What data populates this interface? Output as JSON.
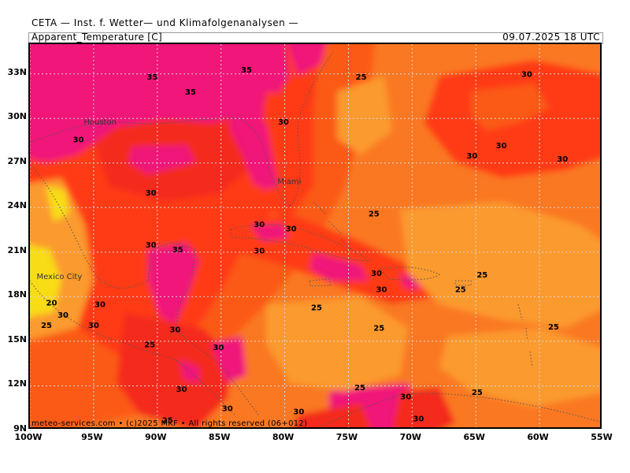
{
  "header": {
    "source": "CETA — Inst. f. Wetter— und Klimafolgenanalysen —",
    "parameter": "Apparent_Temperature [C]",
    "valid_time": "09.07.2025 18 UTC"
  },
  "footer": "meteo-services.com • (c)2025 MKF • All rights reserved (06+012)",
  "axes": {
    "lat_labels": [
      "33N",
      "30N",
      "27N",
      "24N",
      "21N",
      "18N",
      "15N",
      "12N",
      "9N"
    ],
    "lon_labels": [
      "100W",
      "95W",
      "90W",
      "85W",
      "80W",
      "75W",
      "70W",
      "65W",
      "60W",
      "55W"
    ],
    "lat_values": [
      33,
      30,
      27,
      24,
      21,
      18,
      15,
      12,
      9
    ],
    "lon_values": [
      -100,
      -95,
      -90,
      -85,
      -80,
      -75,
      -70,
      -65,
      -60,
      -55
    ]
  },
  "colors": {
    "magenta": "#f0147a",
    "hot_red": "#f42a1c",
    "red": "#ff3a12",
    "orange_red": "#fb5a12",
    "orange": "#fa7820",
    "light_orange": "#fb9a2e",
    "yellow": "#f8dc18",
    "grid": "#d9d9d9",
    "coast": "#555555"
  },
  "cities": [
    {
      "name": "Houston",
      "lon": -95.4,
      "lat": 29.8
    },
    {
      "name": "Miami",
      "lon": -80.2,
      "lat": 25.8
    },
    {
      "name": "Mexico City",
      "lon": -99.1,
      "lat": 19.4
    }
  ],
  "contour_labels": [
    {
      "text": "35",
      "lon": -90.4,
      "lat": 32.6
    },
    {
      "text": "35",
      "lon": -83.0,
      "lat": 33.1
    },
    {
      "text": "35",
      "lon": -87.4,
      "lat": 31.6
    },
    {
      "text": "30",
      "lon": -80.1,
      "lat": 29.6
    },
    {
      "text": "30",
      "lon": -96.2,
      "lat": 28.4
    },
    {
      "text": "30",
      "lon": -90.5,
      "lat": 24.8
    },
    {
      "text": "30",
      "lon": -82.0,
      "lat": 22.7
    },
    {
      "text": "30",
      "lon": -79.5,
      "lat": 22.4
    },
    {
      "text": "30",
      "lon": -90.5,
      "lat": 21.3
    },
    {
      "text": "35",
      "lon": -88.4,
      "lat": 21.0
    },
    {
      "text": "30",
      "lon": -82.0,
      "lat": 20.9
    },
    {
      "text": "25",
      "lon": -74.0,
      "lat": 32.6
    },
    {
      "text": "25",
      "lon": -73.0,
      "lat": 23.4
    },
    {
      "text": "30",
      "lon": -61.0,
      "lat": 32.8
    },
    {
      "text": "30",
      "lon": -63.0,
      "lat": 28.0
    },
    {
      "text": "30",
      "lon": -65.3,
      "lat": 27.3
    },
    {
      "text": "30",
      "lon": -58.2,
      "lat": 27.1
    },
    {
      "text": "30",
      "lon": -72.8,
      "lat": 19.4
    },
    {
      "text": "30",
      "lon": -72.4,
      "lat": 18.3
    },
    {
      "text": "25",
      "lon": -66.2,
      "lat": 18.3
    },
    {
      "text": "25",
      "lon": -64.5,
      "lat": 19.3
    },
    {
      "text": "25",
      "lon": -77.5,
      "lat": 17.1
    },
    {
      "text": "25",
      "lon": -72.6,
      "lat": 15.7
    },
    {
      "text": "25",
      "lon": -58.9,
      "lat": 15.8
    },
    {
      "text": "20",
      "lon": -98.3,
      "lat": 17.4
    },
    {
      "text": "30",
      "lon": -97.4,
      "lat": 16.6
    },
    {
      "text": "30",
      "lon": -94.5,
      "lat": 17.3
    },
    {
      "text": "25",
      "lon": -98.7,
      "lat": 15.9
    },
    {
      "text": "30",
      "lon": -95.0,
      "lat": 15.9
    },
    {
      "text": "30",
      "lon": -88.6,
      "lat": 15.6
    },
    {
      "text": "25",
      "lon": -90.6,
      "lat": 14.6
    },
    {
      "text": "30",
      "lon": -85.2,
      "lat": 14.4
    },
    {
      "text": "30",
      "lon": -88.1,
      "lat": 11.6
    },
    {
      "text": "30",
      "lon": -84.5,
      "lat": 10.3
    },
    {
      "text": "25",
      "lon": -89.2,
      "lat": 9.5
    },
    {
      "text": "30",
      "lon": -78.9,
      "lat": 10.1
    },
    {
      "text": "25",
      "lon": -74.1,
      "lat": 11.7
    },
    {
      "text": "30",
      "lon": -70.5,
      "lat": 11.1
    },
    {
      "text": "30",
      "lon": -69.5,
      "lat": 9.6
    },
    {
      "text": "25",
      "lon": -64.9,
      "lat": 11.4
    }
  ]
}
